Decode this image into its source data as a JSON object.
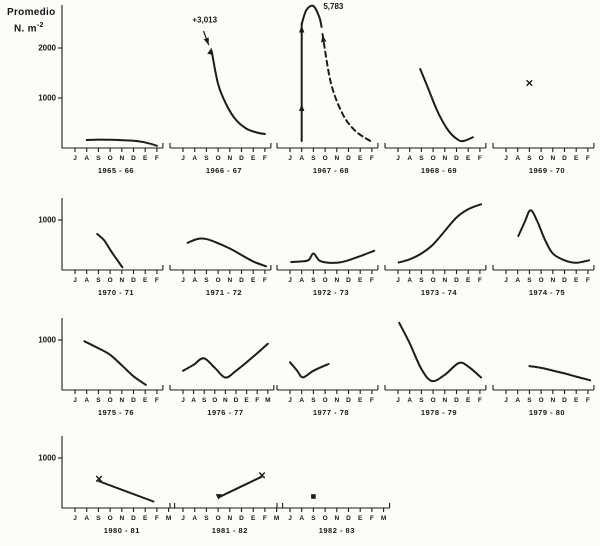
{
  "figure": {
    "title_line1": "Promedio",
    "title_line2": "N. m",
    "title_superscript": "-2",
    "ink": "#1c1c1c",
    "paper": "#fcfcf9"
  },
  "chart_data": {
    "type": "line",
    "ylabel": "Promedio N·m⁻²",
    "xlabel": "",
    "grid": false,
    "legend": "none",
    "y_scale_units_per_tick": 1000,
    "charts": [
      {
        "label": "1965 - 66",
        "months": [
          "J",
          "A",
          "S",
          "O",
          "N",
          "D",
          "E",
          "F"
        ],
        "y_ticks": [
          1000,
          2000
        ],
        "series": [
          {
            "dash": false,
            "smooth": true,
            "points": [
              [
                1,
                160
              ],
              [
                2.2,
                168
              ],
              [
                3.5,
                162
              ],
              [
                4.6,
                150
              ],
              [
                5.4,
                135
              ],
              [
                6.3,
                95
              ],
              [
                7,
                45
              ]
            ]
          }
        ],
        "markers": [],
        "annotations": [],
        "arrowheads": []
      },
      {
        "label": "1966 - 67",
        "months": [
          "J",
          "A",
          "S",
          "O",
          "N",
          "D",
          "E",
          "F"
        ],
        "y_ticks": [],
        "series": [
          {
            "dash": false,
            "smooth": true,
            "points": [
              [
                2.45,
                1940
              ],
              [
                3,
                1280
              ],
              [
                3.7,
                870
              ],
              [
                4.5,
                570
              ],
              [
                5.4,
                390
              ],
              [
                6.3,
                310
              ],
              [
                7,
                280
              ]
            ]
          }
        ],
        "markers": [],
        "annotations": [
          {
            "text": "+3,013",
            "m": 0.8,
            "v": 2570,
            "arrow": [
              1.75,
              2340,
              2.2,
              2060
            ]
          }
        ],
        "arrowheads": [
          {
            "m": 2.45,
            "v": 2010,
            "deg": -75
          }
        ]
      },
      {
        "label": "1967 - 68",
        "months": [
          "J",
          "A",
          "S",
          "O",
          "N",
          "D",
          "E",
          "F"
        ],
        "y_ticks": [],
        "series": [
          {
            "dash": false,
            "smooth": false,
            "points": [
              [
                1,
                140
              ],
              [
                1,
                2480
              ]
            ]
          },
          {
            "dash": false,
            "smooth": true,
            "points": [
              [
                1,
                2480
              ],
              [
                1.4,
                2760
              ],
              [
                2,
                2840
              ],
              [
                2.5,
                2620
              ],
              [
                2.7,
                2420
              ]
            ]
          },
          {
            "dash": true,
            "smooth": true,
            "points": [
              [
                2.78,
                2280
              ],
              [
                3.5,
                1300
              ],
              [
                4.5,
                680
              ],
              [
                5.5,
                360
              ],
              [
                6.5,
                190
              ],
              [
                7.15,
                110
              ]
            ]
          }
        ],
        "markers": [],
        "annotations": [
          {
            "text": "5,783",
            "m": 2.85,
            "v": 2840
          }
        ],
        "arrowheads": [
          {
            "m": 1,
            "v": 2450,
            "deg": -90
          },
          {
            "m": 1,
            "v": 880,
            "deg": -90
          },
          {
            "m": 2.78,
            "v": 2260,
            "deg": -100
          }
        ]
      },
      {
        "label": "1968 - 69",
        "months": [
          "J",
          "A",
          "S",
          "O",
          "N",
          "D",
          "E",
          "F"
        ],
        "y_ticks": [],
        "series": [
          {
            "dash": false,
            "smooth": true,
            "points": [
              [
                1.9,
                1580
              ],
              [
                2.6,
                1180
              ],
              [
                3.4,
                720
              ],
              [
                4.3,
                350
              ],
              [
                5.1,
                170
              ],
              [
                5.6,
                140
              ],
              [
                6.4,
                215
              ]
            ]
          }
        ],
        "markers": [],
        "annotations": [],
        "arrowheads": []
      },
      {
        "label": "1969 - 70",
        "months": [
          "J",
          "A",
          "S",
          "O",
          "N",
          "D",
          "E",
          "F"
        ],
        "y_ticks": [],
        "series": [],
        "markers": [
          {
            "shape": "x",
            "m": 2,
            "v": 1300
          }
        ],
        "annotations": [],
        "arrowheads": []
      },
      {
        "label": "1970 - 71",
        "months": [
          "J",
          "A",
          "S",
          "O",
          "N",
          "D",
          "E",
          "F"
        ],
        "y_ticks": [
          1000
        ],
        "series": [
          {
            "dash": false,
            "smooth": true,
            "points": [
              [
                1.9,
                720
              ],
              [
                2.5,
                590
              ],
              [
                3.1,
                370
              ],
              [
                4.05,
                55
              ]
            ]
          }
        ],
        "markers": [],
        "annotations": [],
        "arrowheads": []
      },
      {
        "label": "1971 - 72",
        "months": [
          "J",
          "A",
          "S",
          "O",
          "N",
          "D",
          "E",
          "F"
        ],
        "y_ticks": [],
        "series": [
          {
            "dash": false,
            "smooth": true,
            "points": [
              [
                0.4,
                545
              ],
              [
                1.2,
                618
              ],
              [
                1.9,
                625
              ],
              [
                2.8,
                555
              ],
              [
                4,
                430
              ],
              [
                5,
                300
              ],
              [
                6,
                170
              ],
              [
                7.1,
                75
              ]
            ]
          }
        ],
        "markers": [],
        "annotations": [],
        "arrowheads": []
      },
      {
        "label": "1972 - 73",
        "months": [
          "J",
          "A",
          "S",
          "O",
          "N",
          "D",
          "E",
          "F"
        ],
        "y_ticks": [],
        "series": [
          {
            "dash": false,
            "smooth": true,
            "points": [
              [
                0.1,
                160
              ],
              [
                1,
                172
              ],
              [
                1.6,
                200
              ],
              [
                2,
                330
              ],
              [
                2.5,
                190
              ],
              [
                3.2,
                148
              ],
              [
                4.2,
                150
              ],
              [
                5.2,
                210
              ],
              [
                6.2,
                295
              ],
              [
                7.2,
                385
              ]
            ]
          }
        ],
        "markers": [],
        "annotations": [],
        "arrowheads": []
      },
      {
        "label": "1973 - 74",
        "months": [
          "J",
          "A",
          "S",
          "O",
          "N",
          "D",
          "E",
          "F"
        ],
        "y_ticks": [],
        "series": [
          {
            "dash": false,
            "smooth": true,
            "points": [
              [
                0.05,
                150
              ],
              [
                1,
                215
              ],
              [
                2,
                330
              ],
              [
                3,
                510
              ],
              [
                4,
                780
              ],
              [
                5,
                1050
              ],
              [
                6,
                1215
              ],
              [
                7.1,
                1315
              ]
            ]
          }
        ],
        "markers": [],
        "annotations": [],
        "arrowheads": []
      },
      {
        "label": "1974 - 75",
        "months": [
          "J",
          "A",
          "S",
          "O",
          "N",
          "D",
          "E",
          "F"
        ],
        "y_ticks": [],
        "series": [
          {
            "dash": false,
            "smooth": true,
            "points": [
              [
                1.05,
                680
              ],
              [
                1.6,
                960
              ],
              [
                2.1,
                1195
              ],
              [
                2.7,
                960
              ],
              [
                3.3,
                620
              ],
              [
                4,
                330
              ],
              [
                5,
                195
              ],
              [
                6,
                145
              ],
              [
                7.1,
                195
              ]
            ]
          }
        ],
        "markers": [],
        "annotations": [],
        "arrowheads": []
      },
      {
        "label": "1975 - 76",
        "months": [
          "J",
          "A",
          "S",
          "O",
          "N",
          "D",
          "E",
          "F"
        ],
        "y_ticks": [
          1000
        ],
        "series": [
          {
            "dash": false,
            "smooth": true,
            "points": [
              [
                0.8,
                975
              ],
              [
                2,
                835
              ],
              [
                3,
                705
              ],
              [
                4,
                495
              ],
              [
                5,
                275
              ],
              [
                6.05,
                105
              ]
            ]
          }
        ],
        "markers": [],
        "annotations": [],
        "arrowheads": []
      },
      {
        "label": "1976 - 77",
        "months": [
          "J",
          "A",
          "S",
          "O",
          "N",
          "D",
          "E",
          "F",
          "M"
        ],
        "tick_step": 10.6,
        "y_ticks": [],
        "series": [
          {
            "dash": false,
            "smooth": true,
            "points": [
              [
                0,
                385
              ],
              [
                1,
                505
              ],
              [
                1.95,
                635
              ],
              [
                3,
                445
              ],
              [
                4,
                248
              ],
              [
                5,
                385
              ],
              [
                6,
                555
              ],
              [
                7,
                735
              ],
              [
                8,
                925
              ]
            ]
          }
        ],
        "markers": [],
        "annotations": [],
        "arrowheads": []
      },
      {
        "label": "1977 - 78",
        "months": [
          "J",
          "A",
          "S",
          "O",
          "N",
          "D",
          "E",
          "F"
        ],
        "y_ticks": [],
        "series": [
          {
            "dash": false,
            "smooth": true,
            "points": [
              [
                0,
                555
              ],
              [
                0.6,
                390
              ],
              [
                1.1,
                252
              ],
              [
                2,
                385
              ],
              [
                3.3,
                520
              ]
            ]
          }
        ],
        "markers": [],
        "annotations": [],
        "arrowheads": []
      },
      {
        "label": "1978 - 79",
        "months": [
          "J",
          "A",
          "S",
          "O",
          "N",
          "D",
          "E",
          "F"
        ],
        "y_ticks": [],
        "series": [
          {
            "dash": false,
            "smooth": true,
            "points": [
              [
                0.1,
                1345
              ],
              [
                1,
                935
              ],
              [
                2,
                420
              ],
              [
                2.9,
                180
              ],
              [
                4,
                305
              ],
              [
                5.2,
                540
              ],
              [
                6,
                470
              ],
              [
                7.1,
                250
              ]
            ]
          }
        ],
        "markers": [],
        "annotations": [],
        "arrowheads": []
      },
      {
        "label": "1979 - 80",
        "months": [
          "J",
          "A",
          "S",
          "O",
          "N",
          "D",
          "E",
          "F"
        ],
        "y_ticks": [],
        "series": [
          {
            "dash": false,
            "smooth": true,
            "points": [
              [
                2,
                478
              ],
              [
                3,
                443
              ],
              [
                4,
                388
              ],
              [
                5,
                333
              ],
              [
                6,
                268
              ],
              [
                7.2,
                195
              ]
            ]
          }
        ],
        "markers": [],
        "annotations": [],
        "arrowheads": []
      },
      {
        "label": "1980 - 81",
        "months": [
          "J",
          "A",
          "S",
          "O",
          "N",
          "D",
          "E",
          "F",
          "M"
        ],
        "y_ticks": [
          1000
        ],
        "series": [
          {
            "dash": false,
            "smooth": false,
            "points": [
              [
                2,
                540
              ],
              [
                6.7,
                130
              ]
            ]
          }
        ],
        "markers": [
          {
            "shape": "x",
            "m": 2.05,
            "v": 585
          }
        ],
        "annotations": [],
        "arrowheads": []
      },
      {
        "label": "1981 - 82",
        "months": [
          "J",
          "A",
          "S",
          "O",
          "N",
          "D",
          "E",
          "F",
          "M"
        ],
        "y_ticks": [],
        "series": [
          {
            "dash": false,
            "smooth": false,
            "points": [
              [
                3.05,
                215
              ],
              [
                6.7,
                625
              ]
            ]
          }
        ],
        "markers": [
          {
            "shape": "triangle",
            "m": 3.05,
            "v": 225
          },
          {
            "shape": "x",
            "m": 6.75,
            "v": 655
          }
        ],
        "annotations": [],
        "arrowheads": []
      },
      {
        "label": "1982 - 83",
        "months": [
          "J",
          "A",
          "S",
          "O",
          "N",
          "D",
          "E",
          "F",
          "M"
        ],
        "y_ticks": [],
        "series": [],
        "markers": [
          {
            "shape": "square",
            "m": 2,
            "v": 230
          }
        ],
        "annotations": [],
        "arrowheads": []
      }
    ]
  }
}
